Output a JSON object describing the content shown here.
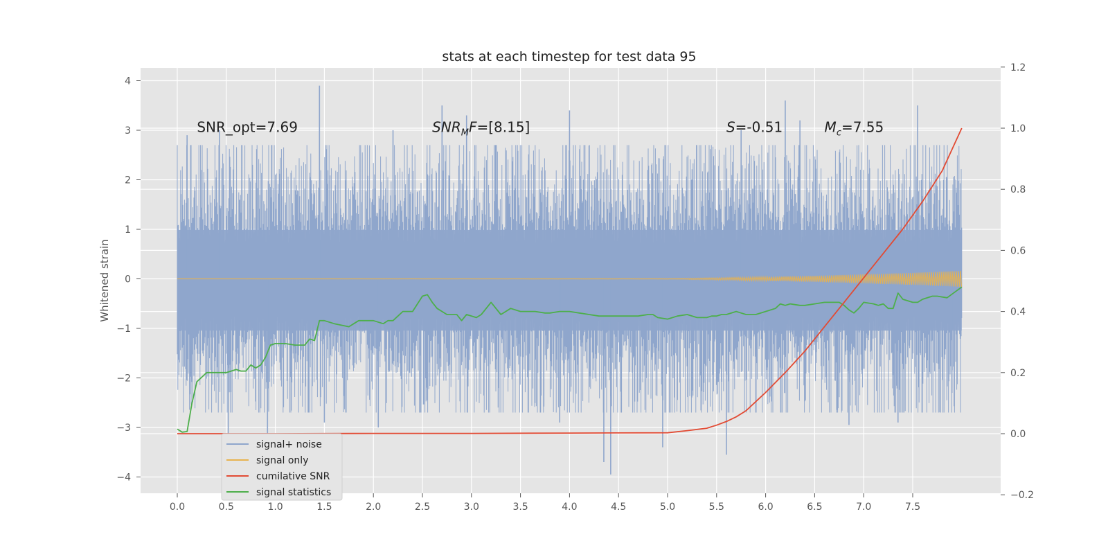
{
  "chart_data": {
    "type": "line",
    "title": "stats at each timestep for test data 95",
    "ylabel": "Whitened strain",
    "y2label": "",
    "xlim": [
      -0.38,
      8.4
    ],
    "ylim": [
      -4.35,
      4.25
    ],
    "y2lim": [
      -0.2,
      1.2
    ],
    "xticks": [
      "0.0",
      "0.5",
      "1.0",
      "1.5",
      "2.0",
      "2.5",
      "3.0",
      "3.5",
      "4.0",
      "4.5",
      "5.0",
      "5.5",
      "6.0",
      "6.5",
      "7.0",
      "7.5"
    ],
    "yticks": [
      "4",
      "3",
      "2",
      "1",
      "0",
      "−1",
      "−2",
      "−3",
      "−4"
    ],
    "y2ticks": [
      "1.2",
      "1.0",
      "0.8",
      "0.6",
      "0.4",
      "0.2",
      "0.0",
      "−0.2"
    ],
    "grid": true,
    "legend_position": "lower-left",
    "annotations": [
      {
        "text": "SNR_opt=7.69",
        "x": 0.2,
        "y": 3.05
      },
      {
        "text": "SNRMF=[8.15]",
        "x": 2.6,
        "y": 3.05
      },
      {
        "text": "S=-0.51",
        "x": 5.6,
        "y": 3.05
      },
      {
        "text": "Mc=7.55",
        "x": 6.6,
        "y": 3.05
      }
    ],
    "series": [
      {
        "name": "signal+ noise",
        "color": "#8fa6cc",
        "axis": "left",
        "style": "noise-band",
        "x_range": [
          0.0,
          8.0
        ],
        "typical_range": [
          -1.9,
          1.8
        ],
        "peaks": [
          {
            "x": 0.1,
            "y": 2.9
          },
          {
            "x": 0.43,
            "y": 3.0
          },
          {
            "x": 0.52,
            "y": -3.2
          },
          {
            "x": 0.92,
            "y": -3.25
          },
          {
            "x": 1.45,
            "y": 3.9
          },
          {
            "x": 1.5,
            "y": -2.9
          },
          {
            "x": 2.2,
            "y": 3.0
          },
          {
            "x": 2.05,
            "y": -3.0
          },
          {
            "x": 2.7,
            "y": 3.5
          },
          {
            "x": 2.95,
            "y": 3.3
          },
          {
            "x": 3.9,
            "y": -2.9
          },
          {
            "x": 4.0,
            "y": 3.4
          },
          {
            "x": 4.35,
            "y": -3.7
          },
          {
            "x": 4.42,
            "y": -3.95
          },
          {
            "x": 4.95,
            "y": -3.4
          },
          {
            "x": 5.6,
            "y": -3.55
          },
          {
            "x": 5.75,
            "y": 3.0
          },
          {
            "x": 6.2,
            "y": 3.6
          },
          {
            "x": 6.35,
            "y": 3.2
          },
          {
            "x": 6.85,
            "y": -2.95
          },
          {
            "x": 7.35,
            "y": -2.9
          },
          {
            "x": 7.55,
            "y": 3.5
          },
          {
            "x": 7.9,
            "y": -2.3
          }
        ]
      },
      {
        "name": "signal only",
        "color": "#e8b34f",
        "axis": "left",
        "style": "chirp",
        "x": [
          0.0,
          5.0,
          5.5,
          6.0,
          6.5,
          7.0,
          7.5,
          8.0
        ],
        "amplitude": [
          0.0,
          0.005,
          0.02,
          0.04,
          0.06,
          0.09,
          0.12,
          0.16
        ]
      },
      {
        "name": "cumilative SNR",
        "color": "#e24a33",
        "axis": "right",
        "x": [
          0.0,
          1.0,
          2.0,
          3.0,
          4.0,
          5.0,
          5.2,
          5.4,
          5.5,
          5.6,
          5.7,
          5.8,
          5.9,
          6.0,
          6.2,
          6.4,
          6.6,
          6.8,
          7.0,
          7.2,
          7.4,
          7.6,
          7.8,
          8.0
        ],
        "values": [
          0.0,
          0.0,
          0.001,
          0.001,
          0.002,
          0.003,
          0.01,
          0.018,
          0.028,
          0.04,
          0.055,
          0.075,
          0.105,
          0.135,
          0.2,
          0.27,
          0.35,
          0.43,
          0.51,
          0.59,
          0.67,
          0.76,
          0.86,
          1.0
        ]
      },
      {
        "name": "signal statistics",
        "color": "#4daf4a",
        "axis": "right",
        "x": [
          0.0,
          0.05,
          0.1,
          0.15,
          0.2,
          0.3,
          0.4,
          0.5,
          0.55,
          0.6,
          0.65,
          0.7,
          0.75,
          0.8,
          0.85,
          0.9,
          0.95,
          1.0,
          1.1,
          1.2,
          1.3,
          1.35,
          1.4,
          1.45,
          1.5,
          1.6,
          1.75,
          1.8,
          1.85,
          1.9,
          2.0,
          2.1,
          2.15,
          2.2,
          2.3,
          2.35,
          2.4,
          2.5,
          2.55,
          2.6,
          2.65,
          2.75,
          2.85,
          2.9,
          2.95,
          3.05,
          3.1,
          3.2,
          3.3,
          3.4,
          3.5,
          3.55,
          3.65,
          3.75,
          3.8,
          3.9,
          4.0,
          4.1,
          4.2,
          4.3,
          4.5,
          4.6,
          4.7,
          4.8,
          4.85,
          4.9,
          5.0,
          5.1,
          5.2,
          5.3,
          5.4,
          5.45,
          5.5,
          5.55,
          5.6,
          5.7,
          5.75,
          5.8,
          5.9,
          6.0,
          6.1,
          6.15,
          6.2,
          6.25,
          6.35,
          6.4,
          6.5,
          6.6,
          6.7,
          6.75,
          6.8,
          6.85,
          6.9,
          6.95,
          7.0,
          7.1,
          7.15,
          7.2,
          7.25,
          7.3,
          7.35,
          7.4,
          7.5,
          7.55,
          7.6,
          7.7,
          7.75,
          7.85,
          8.0
        ],
        "values": [
          0.015,
          0.005,
          0.007,
          0.1,
          0.17,
          0.2,
          0.2,
          0.2,
          0.205,
          0.21,
          0.205,
          0.205,
          0.225,
          0.215,
          0.225,
          0.25,
          0.29,
          0.295,
          0.295,
          0.29,
          0.29,
          0.31,
          0.305,
          0.37,
          0.37,
          0.36,
          0.35,
          0.36,
          0.37,
          0.37,
          0.37,
          0.36,
          0.37,
          0.37,
          0.4,
          0.4,
          0.4,
          0.45,
          0.455,
          0.43,
          0.41,
          0.39,
          0.39,
          0.37,
          0.39,
          0.38,
          0.39,
          0.43,
          0.39,
          0.41,
          0.4,
          0.4,
          0.4,
          0.395,
          0.395,
          0.4,
          0.4,
          0.395,
          0.39,
          0.385,
          0.385,
          0.385,
          0.385,
          0.39,
          0.39,
          0.38,
          0.375,
          0.385,
          0.39,
          0.38,
          0.38,
          0.385,
          0.385,
          0.39,
          0.39,
          0.4,
          0.395,
          0.39,
          0.39,
          0.4,
          0.41,
          0.425,
          0.42,
          0.425,
          0.42,
          0.42,
          0.425,
          0.43,
          0.43,
          0.43,
          0.42,
          0.405,
          0.395,
          0.41,
          0.43,
          0.425,
          0.42,
          0.425,
          0.41,
          0.41,
          0.46,
          0.44,
          0.43,
          0.43,
          0.44,
          0.45,
          0.45,
          0.445,
          0.48
        ]
      }
    ]
  }
}
